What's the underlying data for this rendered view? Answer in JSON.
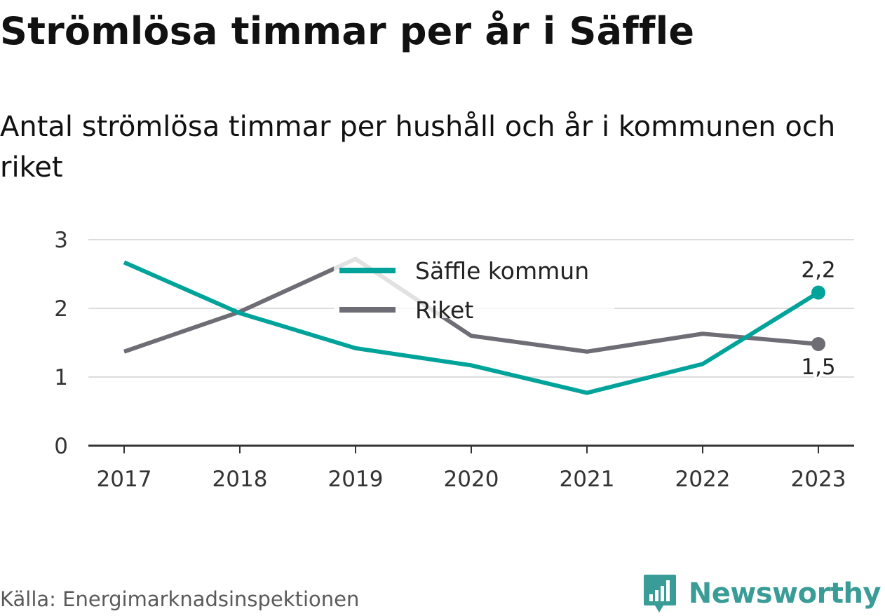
{
  "title": "Strömlösa timmar per år i Säffle",
  "subtitle": "Antal strömlösa timmar per hushåll och år i kommunen och riket",
  "source": "Källa: Energimarknadsinspektionen",
  "brand": {
    "name": "Newsworthy",
    "logo_icon": "bar-chart-icon",
    "color": "#3a9c96"
  },
  "chart_data": {
    "type": "line",
    "title": "Strömlösa timmar per år i Säffle",
    "subtitle": "Antal strömlösa timmar per hushåll och år i kommunen och riket",
    "xlabel": "",
    "ylabel": "",
    "x": [
      "2017",
      "2018",
      "2019",
      "2020",
      "2021",
      "2022",
      "2023"
    ],
    "ylim": [
      0,
      3
    ],
    "yticks": [
      "0",
      "1",
      "2",
      "3"
    ],
    "grid": true,
    "legend_position": "top-center",
    "series": [
      {
        "name": "Säffle kommun",
        "color": "#00a39a",
        "values": [
          2.67,
          1.93,
          1.42,
          1.17,
          0.77,
          1.19,
          2.23
        ],
        "end_label": "2,2"
      },
      {
        "name": "Riket",
        "color": "#6e6d75",
        "values": [
          1.37,
          1.95,
          2.72,
          1.6,
          1.37,
          1.63,
          1.48
        ],
        "end_label": "1,5"
      }
    ]
  }
}
